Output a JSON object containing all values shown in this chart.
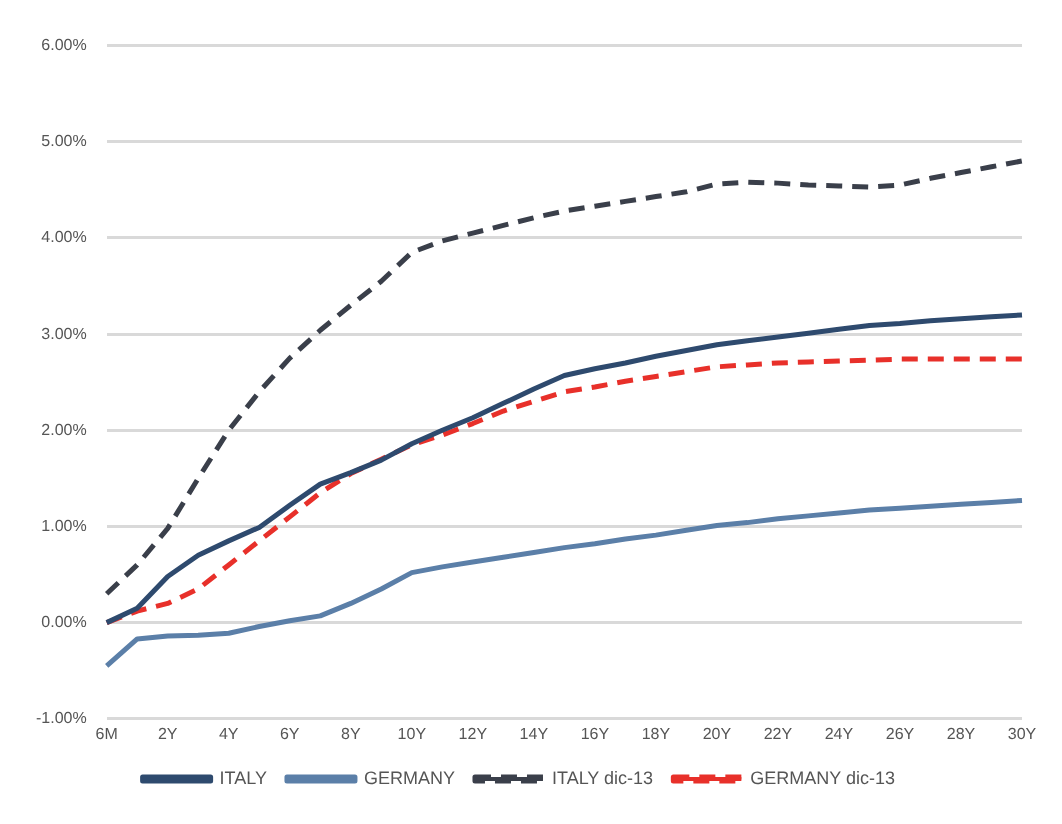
{
  "chart_data": {
    "type": "line",
    "categories": [
      "6M",
      null,
      "2Y",
      null,
      "4Y",
      null,
      "6Y",
      null,
      "8Y",
      null,
      "10Y",
      null,
      "12Y",
      null,
      "14Y",
      null,
      "16Y",
      null,
      "18Y",
      null,
      "20Y",
      null,
      "22Y",
      null,
      "24Y",
      null,
      "26Y",
      null,
      "28Y",
      null,
      "30Y"
    ],
    "series": [
      {
        "name": "ITALY",
        "color": "#2e4a6e",
        "line_style": "solid",
        "values": [
          0.0,
          0.15,
          0.48,
          0.7,
          0.85,
          0.99,
          1.22,
          1.44,
          1.56,
          1.69,
          1.86,
          2.0,
          2.13,
          2.28,
          2.43,
          2.57,
          2.64,
          2.7,
          2.77,
          2.83,
          2.89,
          2.93,
          2.97,
          3.01,
          3.05,
          3.09,
          3.11,
          3.14,
          3.16,
          3.18,
          3.2
        ]
      },
      {
        "name": "GERMANY",
        "color": "#5b7fa8",
        "line_style": "solid",
        "values": [
          -0.45,
          -0.17,
          -0.14,
          -0.13,
          -0.11,
          -0.04,
          0.02,
          0.07,
          0.2,
          0.35,
          0.52,
          0.58,
          0.63,
          0.68,
          0.73,
          0.78,
          0.82,
          0.87,
          0.91,
          0.96,
          1.01,
          1.04,
          1.08,
          1.11,
          1.14,
          1.17,
          1.19,
          1.21,
          1.23,
          1.25,
          1.27
        ]
      },
      {
        "name": "ITALY dic-13",
        "color": "#3a3f4a",
        "line_style": "dashed",
        "values": [
          0.3,
          0.6,
          0.98,
          1.5,
          2.0,
          2.4,
          2.75,
          3.04,
          3.3,
          3.55,
          3.85,
          3.97,
          4.05,
          4.13,
          4.21,
          4.28,
          4.33,
          4.38,
          4.43,
          4.48,
          4.56,
          4.58,
          4.57,
          4.55,
          4.54,
          4.53,
          4.55,
          4.62,
          4.68,
          4.74,
          4.8
        ]
      },
      {
        "name": "GERMANY dic-13",
        "color": "#e8302a",
        "line_style": "dashed",
        "values": [
          0.0,
          0.12,
          0.2,
          0.35,
          0.6,
          0.85,
          1.1,
          1.35,
          1.55,
          1.7,
          1.85,
          1.95,
          2.07,
          2.2,
          2.3,
          2.4,
          2.45,
          2.51,
          2.56,
          2.61,
          2.66,
          2.68,
          2.7,
          2.71,
          2.72,
          2.73,
          2.74,
          2.74,
          2.74,
          2.74,
          2.74
        ]
      }
    ],
    "ylim": [
      -1,
      6
    ],
    "yticks": [
      {
        "value": -1,
        "label": "-1.00%"
      },
      {
        "value": 0,
        "label": "0.00%"
      },
      {
        "value": 1,
        "label": "1.00%"
      },
      {
        "value": 2,
        "label": "2.00%"
      },
      {
        "value": 3,
        "label": "3.00%"
      },
      {
        "value": 4,
        "label": "4.00%"
      },
      {
        "value": 5,
        "label": "5.00%"
      },
      {
        "value": 6,
        "label": "6.00%"
      }
    ],
    "grid": "y",
    "legend": "bottom",
    "marker": "none"
  }
}
